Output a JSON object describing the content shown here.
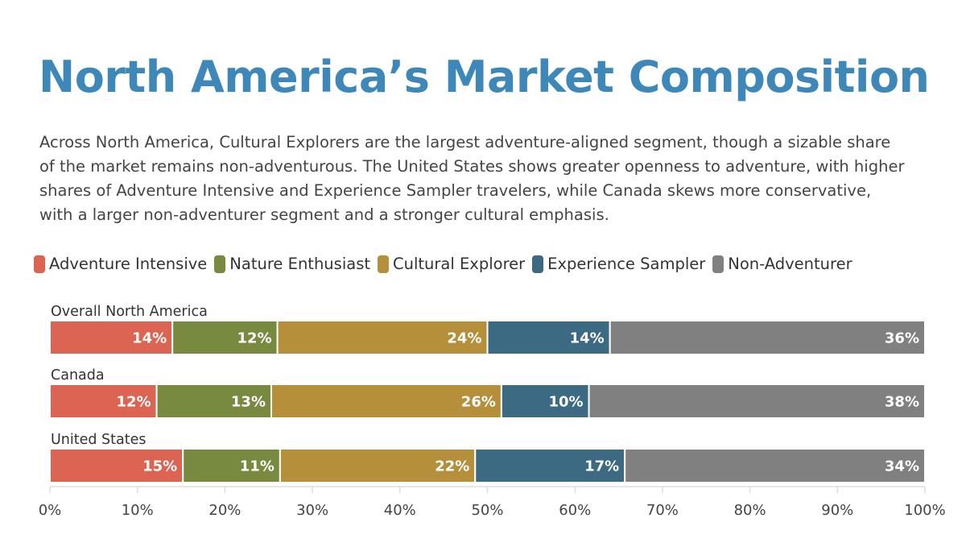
{
  "title": "North America’s Market Composition",
  "description": "Across North America, Cultural Explorers are the largest adventure-aligned segment, though a sizable share of the market remains non-adventurous. The United States shows greater openness to adventure, with higher shares of Adventure Intensive and Experience Sampler travelers, while Canada skews more conservative, with a larger non-adventurer segment and a stronger cultural emphasis.",
  "chart_data": {
    "type": "bar",
    "orientation": "horizontal-stacked",
    "categories": [
      "Overall North America",
      "Canada",
      "United States"
    ],
    "series": [
      {
        "name": "Adventure Intensive",
        "color": "#dc6452",
        "values": [
          14.0,
          12.2,
          15.2
        ],
        "labels": [
          "14%",
          "12%",
          "15%"
        ]
      },
      {
        "name": "Nature Enthusiast",
        "color": "#788940",
        "values": [
          12.0,
          13.1,
          11.1
        ],
        "labels": [
          "12%",
          "13%",
          "11%"
        ]
      },
      {
        "name": "Cultural Explorer",
        "color": "#b68f3b",
        "values": [
          24.0,
          26.3,
          22.3
        ],
        "labels": [
          "24%",
          "26%",
          "22%"
        ]
      },
      {
        "name": "Experience Sampler",
        "color": "#3c6a82",
        "values": [
          14.0,
          10.0,
          17.1
        ],
        "labels": [
          "14%",
          "10%",
          "17%"
        ]
      },
      {
        "name": "Non-Adventurer",
        "color": "#808080",
        "values": [
          36.0,
          38.4,
          34.3
        ],
        "labels": [
          "36%",
          "38%",
          "34%"
        ]
      }
    ],
    "xlim": [
      0,
      100
    ],
    "xticks": [
      "0%",
      "10%",
      "20%",
      "30%",
      "40%",
      "50%",
      "60%",
      "70%",
      "80%",
      "90%",
      "100%"
    ],
    "legend_position": "top-left",
    "grid": false
  }
}
